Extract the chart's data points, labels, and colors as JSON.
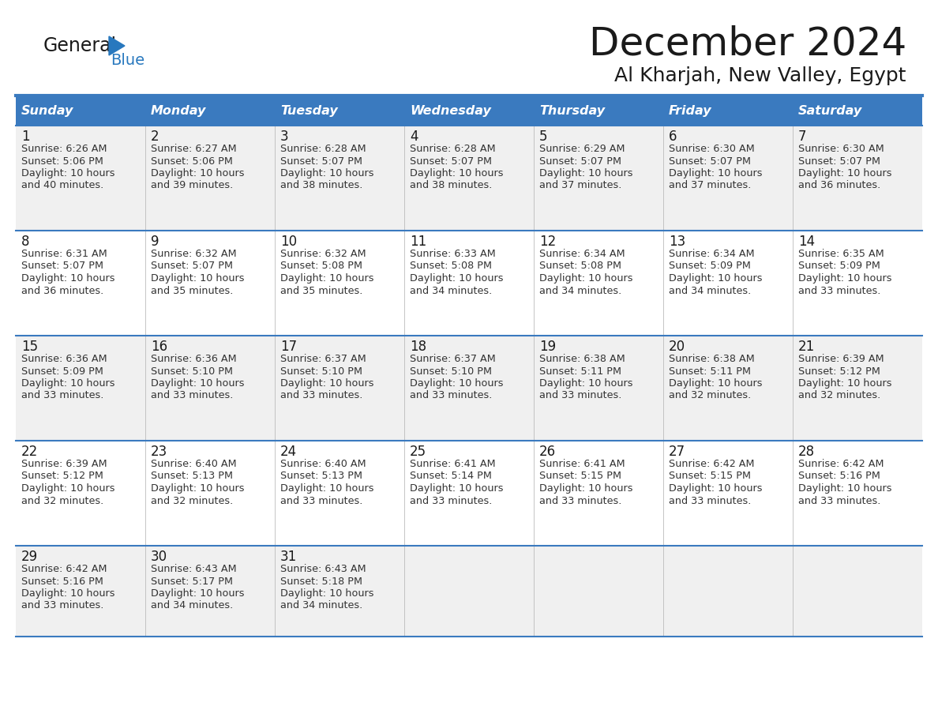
{
  "title": "December 2024",
  "subtitle": "Al Kharjah, New Valley, Egypt",
  "header_bg": "#3a7abf",
  "header_text": "#ffffff",
  "row_bg_odd": "#f0f0f0",
  "row_bg_even": "#ffffff",
  "border_color": "#3a7abf",
  "day_names": [
    "Sunday",
    "Monday",
    "Tuesday",
    "Wednesday",
    "Thursday",
    "Friday",
    "Saturday"
  ],
  "logo_general_color": "#1a1a1a",
  "logo_blue_color": "#2878be",
  "title_fontsize": 36,
  "subtitle_fontsize": 18,
  "calendar_data": [
    [
      {
        "day": "1",
        "sunrise": "6:26 AM",
        "sunset": "5:06 PM",
        "dl1": "Daylight: 10 hours",
        "dl2": "and 40 minutes."
      },
      {
        "day": "2",
        "sunrise": "6:27 AM",
        "sunset": "5:06 PM",
        "dl1": "Daylight: 10 hours",
        "dl2": "and 39 minutes."
      },
      {
        "day": "3",
        "sunrise": "6:28 AM",
        "sunset": "5:07 PM",
        "dl1": "Daylight: 10 hours",
        "dl2": "and 38 minutes."
      },
      {
        "day": "4",
        "sunrise": "6:28 AM",
        "sunset": "5:07 PM",
        "dl1": "Daylight: 10 hours",
        "dl2": "and 38 minutes."
      },
      {
        "day": "5",
        "sunrise": "6:29 AM",
        "sunset": "5:07 PM",
        "dl1": "Daylight: 10 hours",
        "dl2": "and 37 minutes."
      },
      {
        "day": "6",
        "sunrise": "6:30 AM",
        "sunset": "5:07 PM",
        "dl1": "Daylight: 10 hours",
        "dl2": "and 37 minutes."
      },
      {
        "day": "7",
        "sunrise": "6:30 AM",
        "sunset": "5:07 PM",
        "dl1": "Daylight: 10 hours",
        "dl2": "and 36 minutes."
      }
    ],
    [
      {
        "day": "8",
        "sunrise": "6:31 AM",
        "sunset": "5:07 PM",
        "dl1": "Daylight: 10 hours",
        "dl2": "and 36 minutes."
      },
      {
        "day": "9",
        "sunrise": "6:32 AM",
        "sunset": "5:07 PM",
        "dl1": "Daylight: 10 hours",
        "dl2": "and 35 minutes."
      },
      {
        "day": "10",
        "sunrise": "6:32 AM",
        "sunset": "5:08 PM",
        "dl1": "Daylight: 10 hours",
        "dl2": "and 35 minutes."
      },
      {
        "day": "11",
        "sunrise": "6:33 AM",
        "sunset": "5:08 PM",
        "dl1": "Daylight: 10 hours",
        "dl2": "and 34 minutes."
      },
      {
        "day": "12",
        "sunrise": "6:34 AM",
        "sunset": "5:08 PM",
        "dl1": "Daylight: 10 hours",
        "dl2": "and 34 minutes."
      },
      {
        "day": "13",
        "sunrise": "6:34 AM",
        "sunset": "5:09 PM",
        "dl1": "Daylight: 10 hours",
        "dl2": "and 34 minutes."
      },
      {
        "day": "14",
        "sunrise": "6:35 AM",
        "sunset": "5:09 PM",
        "dl1": "Daylight: 10 hours",
        "dl2": "and 33 minutes."
      }
    ],
    [
      {
        "day": "15",
        "sunrise": "6:36 AM",
        "sunset": "5:09 PM",
        "dl1": "Daylight: 10 hours",
        "dl2": "and 33 minutes."
      },
      {
        "day": "16",
        "sunrise": "6:36 AM",
        "sunset": "5:10 PM",
        "dl1": "Daylight: 10 hours",
        "dl2": "and 33 minutes."
      },
      {
        "day": "17",
        "sunrise": "6:37 AM",
        "sunset": "5:10 PM",
        "dl1": "Daylight: 10 hours",
        "dl2": "and 33 minutes."
      },
      {
        "day": "18",
        "sunrise": "6:37 AM",
        "sunset": "5:10 PM",
        "dl1": "Daylight: 10 hours",
        "dl2": "and 33 minutes."
      },
      {
        "day": "19",
        "sunrise": "6:38 AM",
        "sunset": "5:11 PM",
        "dl1": "Daylight: 10 hours",
        "dl2": "and 33 minutes."
      },
      {
        "day": "20",
        "sunrise": "6:38 AM",
        "sunset": "5:11 PM",
        "dl1": "Daylight: 10 hours",
        "dl2": "and 32 minutes."
      },
      {
        "day": "21",
        "sunrise": "6:39 AM",
        "sunset": "5:12 PM",
        "dl1": "Daylight: 10 hours",
        "dl2": "and 32 minutes."
      }
    ],
    [
      {
        "day": "22",
        "sunrise": "6:39 AM",
        "sunset": "5:12 PM",
        "dl1": "Daylight: 10 hours",
        "dl2": "and 32 minutes."
      },
      {
        "day": "23",
        "sunrise": "6:40 AM",
        "sunset": "5:13 PM",
        "dl1": "Daylight: 10 hours",
        "dl2": "and 32 minutes."
      },
      {
        "day": "24",
        "sunrise": "6:40 AM",
        "sunset": "5:13 PM",
        "dl1": "Daylight: 10 hours",
        "dl2": "and 33 minutes."
      },
      {
        "day": "25",
        "sunrise": "6:41 AM",
        "sunset": "5:14 PM",
        "dl1": "Daylight: 10 hours",
        "dl2": "and 33 minutes."
      },
      {
        "day": "26",
        "sunrise": "6:41 AM",
        "sunset": "5:15 PM",
        "dl1": "Daylight: 10 hours",
        "dl2": "and 33 minutes."
      },
      {
        "day": "27",
        "sunrise": "6:42 AM",
        "sunset": "5:15 PM",
        "dl1": "Daylight: 10 hours",
        "dl2": "and 33 minutes."
      },
      {
        "day": "28",
        "sunrise": "6:42 AM",
        "sunset": "5:16 PM",
        "dl1": "Daylight: 10 hours",
        "dl2": "and 33 minutes."
      }
    ],
    [
      {
        "day": "29",
        "sunrise": "6:42 AM",
        "sunset": "5:16 PM",
        "dl1": "Daylight: 10 hours",
        "dl2": "and 33 minutes."
      },
      {
        "day": "30",
        "sunrise": "6:43 AM",
        "sunset": "5:17 PM",
        "dl1": "Daylight: 10 hours",
        "dl2": "and 34 minutes."
      },
      {
        "day": "31",
        "sunrise": "6:43 AM",
        "sunset": "5:18 PM",
        "dl1": "Daylight: 10 hours",
        "dl2": "and 34 minutes."
      },
      null,
      null,
      null,
      null
    ]
  ]
}
